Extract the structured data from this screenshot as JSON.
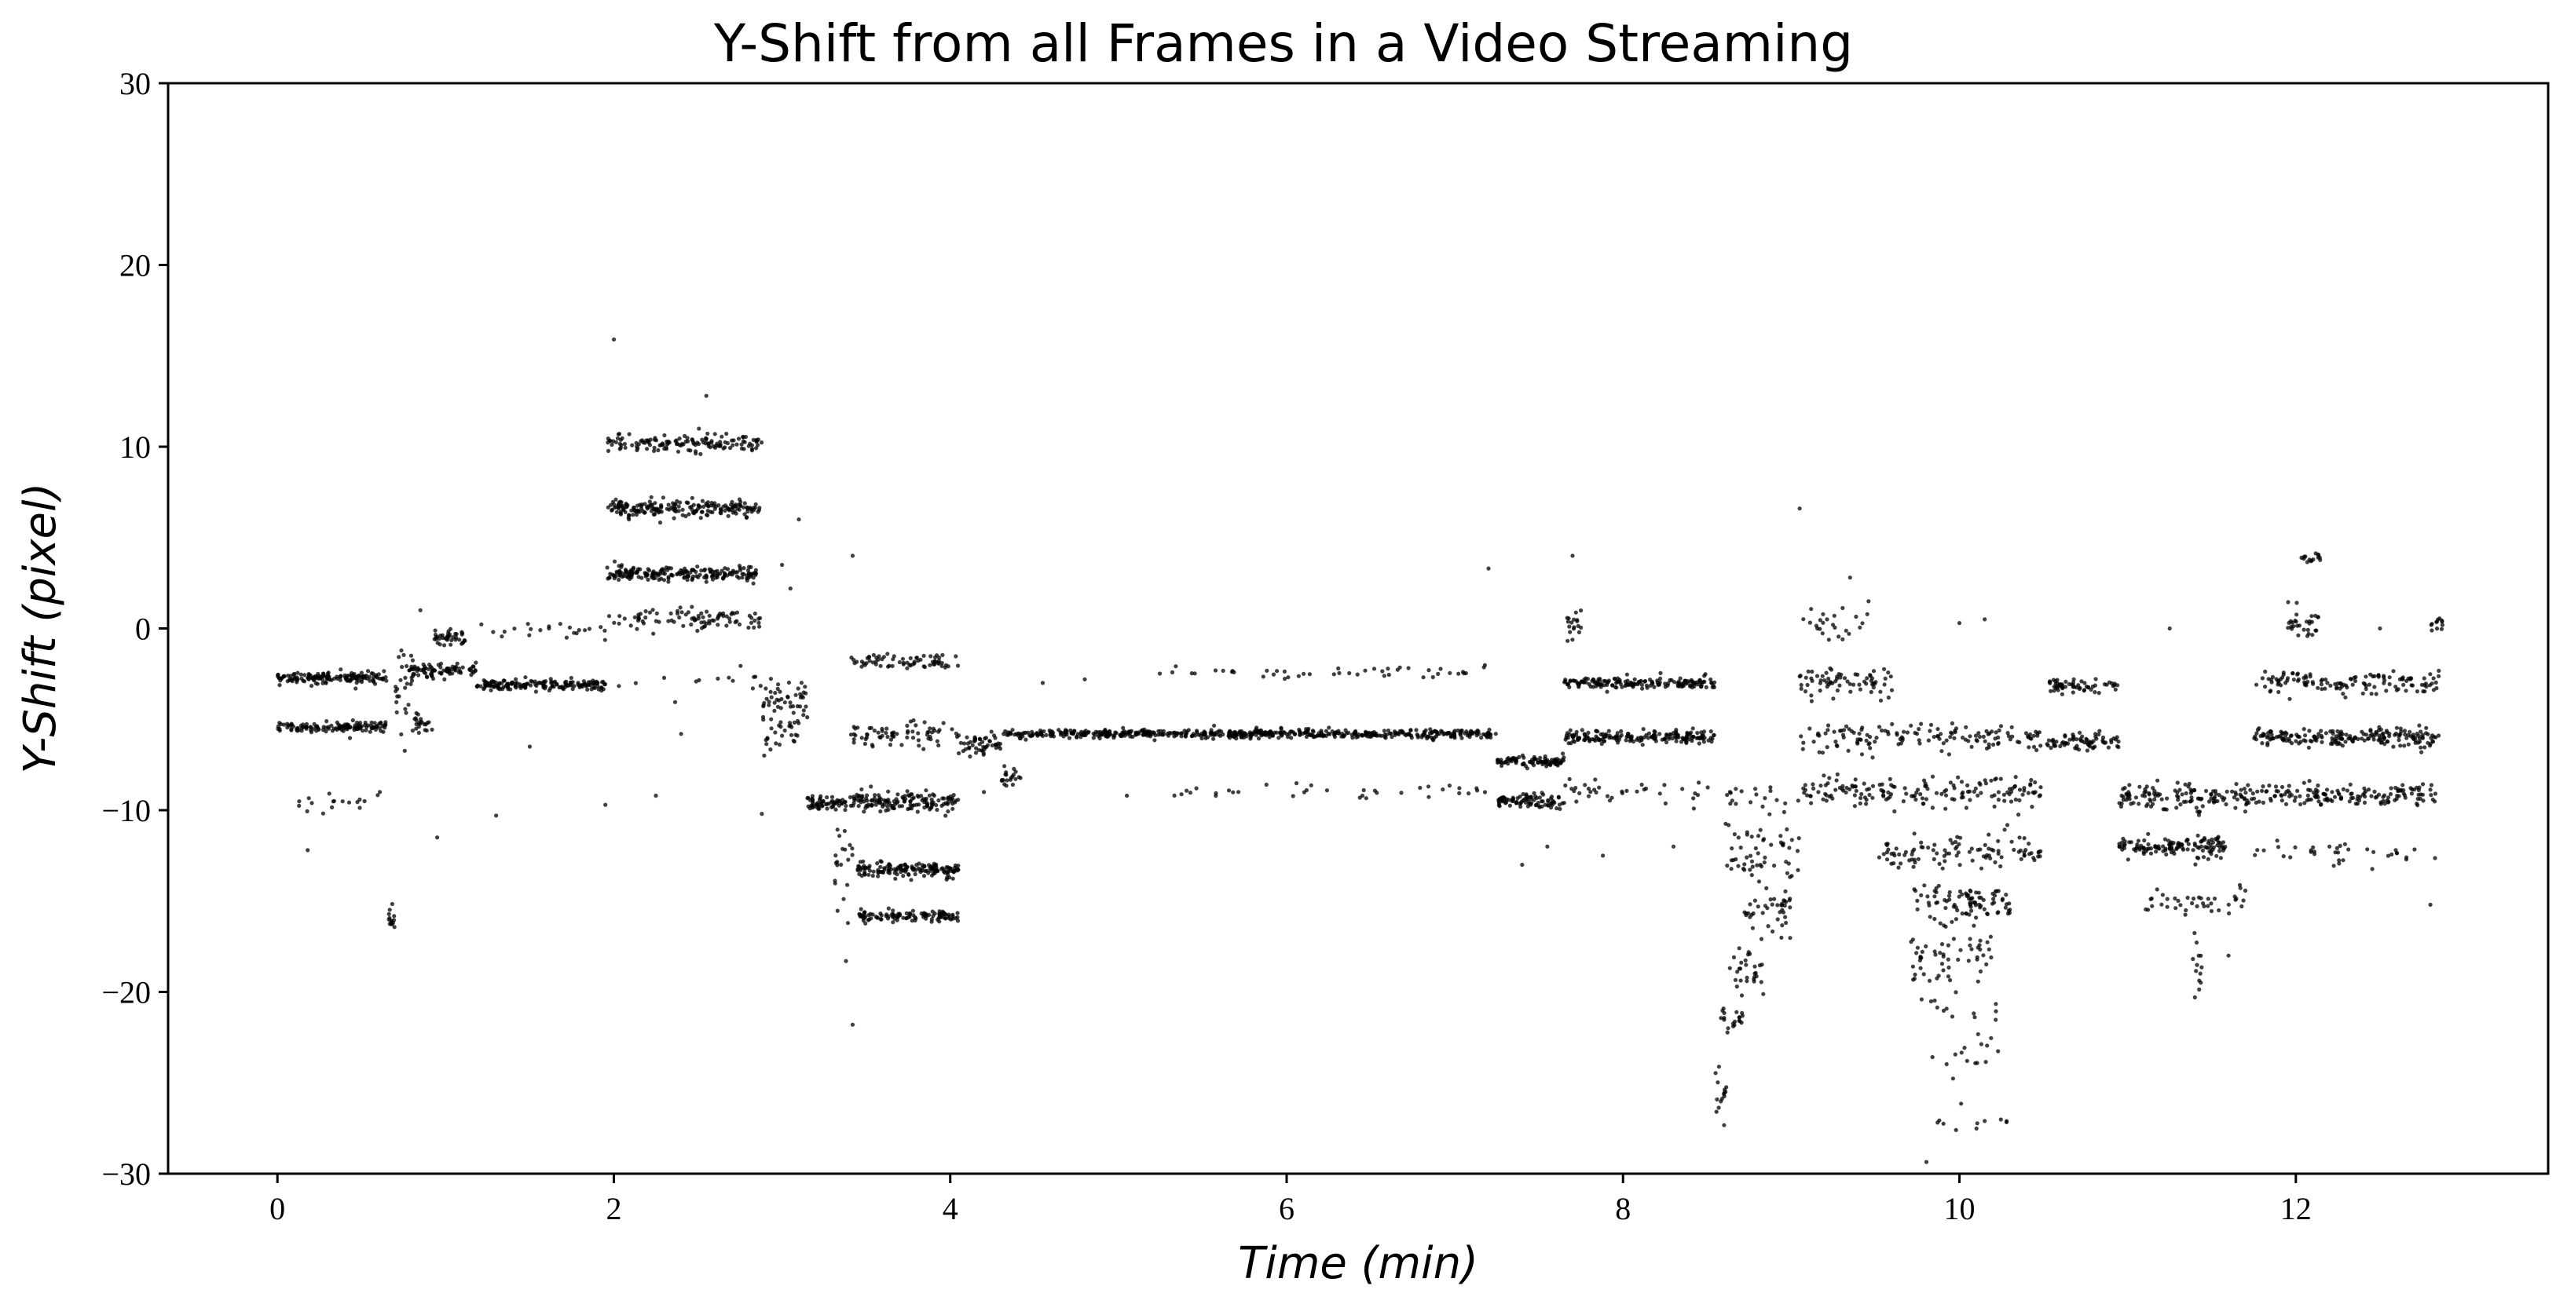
{
  "chart_data": {
    "type": "scatter",
    "title": "Y-Shift from all Frames in a Video Streaming",
    "xlabel": "Time (min)",
    "ylabel": "Y-Shift (pixel)",
    "xlim": [
      -0.65,
      13.5
    ],
    "ylim": [
      -30,
      30
    ],
    "xticks": [
      0,
      2,
      4,
      6,
      8,
      10,
      12
    ],
    "yticks": [
      -30,
      -20,
      -10,
      0,
      10,
      20,
      30
    ],
    "xtick_labels": [
      "0",
      "2",
      "4",
      "6",
      "8",
      "10",
      "12"
    ],
    "ytick_labels": [
      "−30",
      "−20",
      "−10",
      "0",
      "10",
      "20",
      "30"
    ],
    "grid": false,
    "marker_color": "#000000",
    "segments": [
      {
        "t0": 0.0,
        "t1": 0.65,
        "y": -2.7,
        "n": 150,
        "s": 0.15
      },
      {
        "t0": 0.0,
        "t1": 0.65,
        "y": -5.4,
        "n": 130,
        "s": 0.15
      },
      {
        "t0": 0.0,
        "t1": 0.65,
        "y": -9.6,
        "n": 18,
        "s": 0.25
      },
      {
        "t0": 0.66,
        "t1": 0.7,
        "y": -16.0,
        "n": 14,
        "s": 0.3
      },
      {
        "t0": 0.7,
        "t1": 0.82,
        "y": -3.5,
        "n": 30,
        "s": 1.2
      },
      {
        "t0": 0.82,
        "t1": 0.92,
        "y": -5.2,
        "n": 20,
        "s": 0.3
      },
      {
        "t0": 0.78,
        "t1": 1.18,
        "y": -2.3,
        "n": 80,
        "s": 0.2
      },
      {
        "t0": 0.92,
        "t1": 1.12,
        "y": -0.5,
        "n": 40,
        "s": 0.2
      },
      {
        "t0": 1.18,
        "t1": 1.95,
        "y": -3.1,
        "n": 170,
        "s": 0.15
      },
      {
        "t0": 1.2,
        "t1": 1.95,
        "y": 0.0,
        "n": 22,
        "s": 0.3
      },
      {
        "t0": 1.96,
        "t1": 2.88,
        "y": 10.2,
        "n": 140,
        "s": 0.25
      },
      {
        "t0": 1.96,
        "t1": 2.88,
        "y": 6.6,
        "n": 200,
        "s": 0.2
      },
      {
        "t0": 1.96,
        "t1": 2.88,
        "y": 3.0,
        "n": 200,
        "s": 0.2
      },
      {
        "t0": 1.96,
        "t1": 2.88,
        "y": 0.5,
        "n": 90,
        "s": 0.3
      },
      {
        "t0": 2.0,
        "t1": 2.88,
        "y": -2.8,
        "n": 14,
        "s": 0.4
      },
      {
        "t0": 2.88,
        "t1": 3.15,
        "y": -3.8,
        "n": 50,
        "s": 0.6
      },
      {
        "t0": 2.88,
        "t1": 3.1,
        "y": -6.0,
        "n": 25,
        "s": 0.6
      },
      {
        "t0": 3.15,
        "t1": 3.38,
        "y": -9.6,
        "n": 60,
        "s": 0.2
      },
      {
        "t0": 3.3,
        "t1": 3.42,
        "y": -13.0,
        "n": 20,
        "s": 1.2
      },
      {
        "t0": 3.4,
        "t1": 4.05,
        "y": -1.8,
        "n": 70,
        "s": 0.2
      },
      {
        "t0": 3.4,
        "t1": 4.05,
        "y": -5.8,
        "n": 70,
        "s": 0.3
      },
      {
        "t0": 3.4,
        "t1": 4.05,
        "y": -9.5,
        "n": 150,
        "s": 0.25
      },
      {
        "t0": 3.45,
        "t1": 4.05,
        "y": -13.3,
        "n": 150,
        "s": 0.2
      },
      {
        "t0": 3.45,
        "t1": 4.05,
        "y": -15.8,
        "n": 110,
        "s": 0.15
      },
      {
        "t0": 4.05,
        "t1": 4.3,
        "y": -6.4,
        "n": 50,
        "s": 0.3
      },
      {
        "t0": 4.3,
        "t1": 4.42,
        "y": -8.2,
        "n": 20,
        "s": 0.3
      },
      {
        "t0": 4.3,
        "t1": 7.25,
        "y": -5.8,
        "n": 560,
        "s": 0.12
      },
      {
        "t0": 5.15,
        "t1": 7.2,
        "y": -2.4,
        "n": 45,
        "s": 0.15
      },
      {
        "t0": 5.3,
        "t1": 7.2,
        "y": -9.0,
        "n": 35,
        "s": 0.2
      },
      {
        "t0": 7.25,
        "t1": 7.65,
        "y": -7.3,
        "n": 90,
        "s": 0.15
      },
      {
        "t0": 7.25,
        "t1": 7.65,
        "y": -9.5,
        "n": 90,
        "s": 0.2
      },
      {
        "t0": 7.65,
        "t1": 7.75,
        "y": 0.3,
        "n": 18,
        "s": 0.6
      },
      {
        "t0": 7.65,
        "t1": 8.55,
        "y": -3.0,
        "n": 170,
        "s": 0.15
      },
      {
        "t0": 7.65,
        "t1": 8.55,
        "y": -6.0,
        "n": 180,
        "s": 0.18
      },
      {
        "t0": 7.65,
        "t1": 8.55,
        "y": -9.0,
        "n": 35,
        "s": 0.3
      },
      {
        "t0": 8.55,
        "t1": 8.62,
        "y": -25.5,
        "n": 15,
        "s": 0.8
      },
      {
        "t0": 8.58,
        "t1": 8.75,
        "y": -21.5,
        "n": 20,
        "s": 0.3
      },
      {
        "t0": 8.62,
        "t1": 8.85,
        "y": -18.8,
        "n": 30,
        "s": 0.8
      },
      {
        "t0": 8.7,
        "t1": 9.0,
        "y": -15.5,
        "n": 40,
        "s": 0.6
      },
      {
        "t0": 8.6,
        "t1": 9.05,
        "y": -12.5,
        "n": 55,
        "s": 0.8
      },
      {
        "t0": 8.6,
        "t1": 9.05,
        "y": -9.2,
        "n": 20,
        "s": 0.5
      },
      {
        "t0": 9.05,
        "t1": 10.5,
        "y": -6.0,
        "n": 140,
        "s": 0.4
      },
      {
        "t0": 9.05,
        "t1": 10.5,
        "y": -9.0,
        "n": 160,
        "s": 0.4
      },
      {
        "t0": 9.05,
        "t1": 9.6,
        "y": -3.0,
        "n": 70,
        "s": 0.4
      },
      {
        "t0": 9.05,
        "t1": 9.5,
        "y": 0.3,
        "n": 25,
        "s": 0.5
      },
      {
        "t0": 9.5,
        "t1": 10.5,
        "y": -12.3,
        "n": 100,
        "s": 0.5
      },
      {
        "t0": 9.7,
        "t1": 10.3,
        "y": -15.2,
        "n": 90,
        "s": 0.5
      },
      {
        "t0": 9.7,
        "t1": 10.2,
        "y": -18.0,
        "n": 50,
        "s": 0.8
      },
      {
        "t0": 9.7,
        "t1": 10.25,
        "y": -22.5,
        "n": 35,
        "s": 2.0
      },
      {
        "t0": 9.8,
        "t1": 10.3,
        "y": -27.3,
        "n": 8,
        "s": 0.3
      },
      {
        "t0": 10.52,
        "t1": 10.95,
        "y": -3.2,
        "n": 60,
        "s": 0.2
      },
      {
        "t0": 10.52,
        "t1": 10.95,
        "y": -6.2,
        "n": 70,
        "s": 0.2
      },
      {
        "t0": 10.95,
        "t1": 11.75,
        "y": -9.3,
        "n": 130,
        "s": 0.35
      },
      {
        "t0": 10.95,
        "t1": 11.6,
        "y": -12.0,
        "n": 130,
        "s": 0.3
      },
      {
        "t0": 11.1,
        "t1": 11.7,
        "y": -15.0,
        "n": 40,
        "s": 0.4
      },
      {
        "t0": 11.38,
        "t1": 11.44,
        "y": -18.5,
        "n": 12,
        "s": 1.0
      },
      {
        "t0": 11.75,
        "t1": 12.85,
        "y": -6.0,
        "n": 200,
        "s": 0.25
      },
      {
        "t0": 11.75,
        "t1": 12.85,
        "y": -9.2,
        "n": 150,
        "s": 0.3
      },
      {
        "t0": 11.75,
        "t1": 12.85,
        "y": -3.0,
        "n": 130,
        "s": 0.3
      },
      {
        "t0": 11.75,
        "t1": 12.85,
        "y": -12.3,
        "n": 35,
        "s": 0.3
      },
      {
        "t0": 11.95,
        "t1": 12.15,
        "y": 0.2,
        "n": 30,
        "s": 0.5
      },
      {
        "t0": 12.03,
        "t1": 12.15,
        "y": 3.8,
        "n": 15,
        "s": 0.2
      },
      {
        "t0": 12.8,
        "t1": 12.88,
        "y": 0.2,
        "n": 12,
        "s": 0.2
      }
    ],
    "outliers": [
      [
        2.0,
        15.9
      ],
      [
        2.55,
        12.8
      ],
      [
        3.1,
        6.0
      ],
      [
        3.42,
        4.0
      ],
      [
        3.42,
        -21.8
      ],
      [
        7.2,
        3.3
      ],
      [
        7.7,
        4.0
      ],
      [
        9.05,
        6.6
      ],
      [
        9.35,
        2.8
      ],
      [
        10.15,
        0.5
      ],
      [
        0.85,
        1.0
      ],
      [
        0.18,
        -12.2
      ],
      [
        1.3,
        -10.3
      ],
      [
        0.95,
        -11.5
      ],
      [
        2.88,
        -10.2
      ],
      [
        2.25,
        -9.2
      ],
      [
        3.38,
        -18.3
      ],
      [
        9.98,
        -27.6
      ],
      [
        10.15,
        -27.1
      ],
      [
        11.4,
        -20.3
      ],
      [
        12.8,
        -15.2
      ],
      [
        11.6,
        -18.0
      ],
      [
        7.4,
        -13.0
      ],
      [
        7.55,
        -12.0
      ],
      [
        7.88,
        -12.5
      ],
      [
        1.95,
        -9.7
      ],
      [
        1.5,
        -6.5
      ],
      [
        2.4,
        -5.8
      ],
      [
        4.2,
        -9.0
      ],
      [
        4.55,
        -3.0
      ],
      [
        5.05,
        -9.2
      ],
      [
        6.9,
        -2.5
      ],
      [
        4.8,
        -2.8
      ],
      [
        12.2,
        -12.0
      ],
      [
        12.5,
        0.0
      ],
      [
        11.25,
        0.0
      ],
      [
        10.0,
        0.3
      ],
      [
        3.0,
        3.5
      ],
      [
        3.05,
        2.2
      ],
      [
        8.3,
        -12.0
      ]
    ]
  }
}
